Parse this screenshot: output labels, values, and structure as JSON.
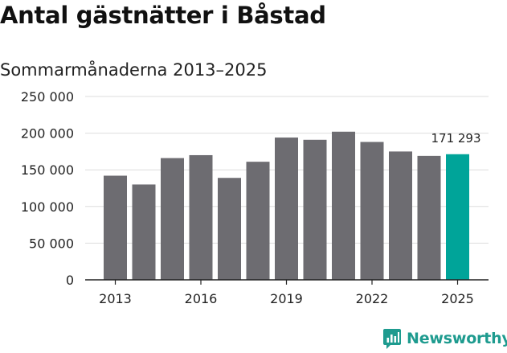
{
  "chart_data": {
    "type": "bar",
    "title": "Antal gästnätter i Båstad",
    "subtitle": "Sommarmånaderna 2013–2025",
    "categories": [
      "2013",
      "2014",
      "2015",
      "2016",
      "2017",
      "2018",
      "2019",
      "2020",
      "2021",
      "2022",
      "2023",
      "2024",
      "2025"
    ],
    "values": [
      142000,
      130000,
      166000,
      170000,
      139000,
      161000,
      194000,
      191000,
      202000,
      188000,
      175000,
      169000,
      171293
    ],
    "ylim": [
      0,
      250000
    ],
    "y_ticks": [
      0,
      50000,
      100000,
      150000,
      200000,
      250000
    ],
    "y_tick_labels": [
      "0",
      "50 000",
      "100 000",
      "150 000",
      "200 000",
      "250 000"
    ],
    "x_tick_labels": [
      "2013",
      "2016",
      "2019",
      "2022",
      "2025"
    ],
    "highlight": {
      "category": "2025",
      "label": "171 293"
    },
    "grid": true,
    "colors": {
      "bar": "#6d6c71",
      "highlight": "#00a499",
      "grid": "#dddddd",
      "axis": "#222222"
    }
  },
  "brand": {
    "name": "Newsworthy",
    "color": "#1e9b8f",
    "icon": "newsworthy-logo-icon"
  }
}
